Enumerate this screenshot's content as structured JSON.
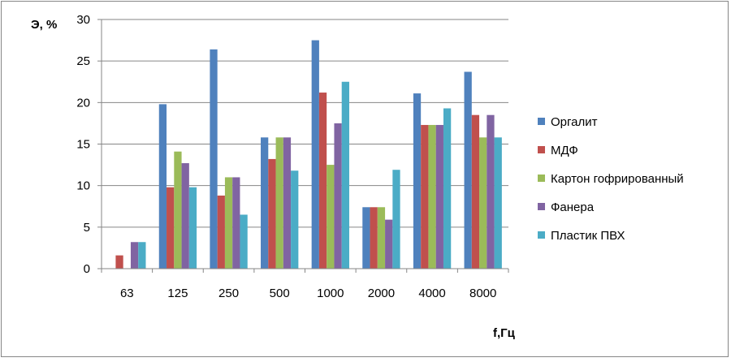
{
  "chart_data": {
    "type": "bar",
    "title": "",
    "ylabel": "Э, %",
    "xlabel": "f,Гц",
    "ylim": [
      0,
      30
    ],
    "yticks": [
      0,
      5,
      10,
      15,
      20,
      25,
      30
    ],
    "grid": true,
    "legend_position": "right",
    "categories": [
      "63",
      "125",
      "250",
      "500",
      "1000",
      "2000",
      "4000",
      "8000"
    ],
    "series": [
      {
        "name": "Оргалит",
        "color": "#4f81bd",
        "values": [
          0,
          19.8,
          26.4,
          15.8,
          27.5,
          7.4,
          21.1,
          23.7
        ]
      },
      {
        "name": "МДФ",
        "color": "#c0504d",
        "values": [
          1.6,
          9.8,
          8.8,
          13.2,
          21.2,
          7.4,
          17.3,
          18.5
        ]
      },
      {
        "name": "Картон гофрированный",
        "color": "#9bbb59",
        "values": [
          0,
          14.1,
          11.0,
          15.8,
          12.5,
          7.4,
          17.3,
          15.8
        ]
      },
      {
        "name": "Фанера",
        "color": "#8064a2",
        "values": [
          3.2,
          12.7,
          11.0,
          15.8,
          17.5,
          5.9,
          17.3,
          18.5
        ]
      },
      {
        "name": "Пластик ПВХ",
        "color": "#4bacc6",
        "values": [
          3.2,
          9.8,
          6.5,
          11.8,
          22.5,
          11.9,
          19.3,
          15.8
        ]
      }
    ]
  }
}
